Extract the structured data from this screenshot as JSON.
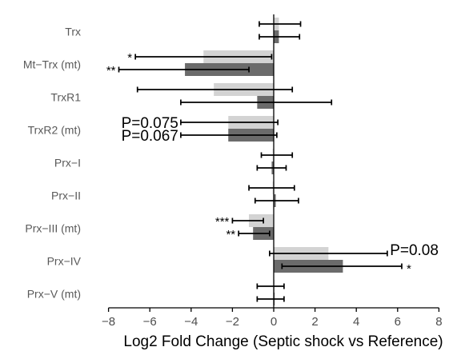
{
  "chart_data": {
    "type": "bar",
    "orientation": "horizontal",
    "title": "",
    "xlabel": "Log2 Fold Change (Septic shock vs Reference)",
    "ylabel": "",
    "xlim": [
      -9,
      9
    ],
    "xticks": [
      -8,
      -6,
      -4,
      -2,
      0,
      2,
      4,
      6,
      8
    ],
    "xtick_labels": [
      "−8",
      "−6",
      "−4",
      "−2",
      "0",
      "2",
      "4",
      "6",
      "8"
    ],
    "grid": false,
    "legend": "none",
    "categories": [
      "Trx",
      "Mt−Trx (mt)",
      "TrxR1",
      "TrxR2 (mt)",
      "Prx−I",
      "Prx−II",
      "Prx−III (mt)",
      "Prx−IV",
      "Prx−V (mt)"
    ],
    "series": [
      {
        "color": "#d3d3d3",
        "values": [
          0.25,
          -3.4,
          -2.9,
          -2.2,
          -0.05,
          -0.05,
          -1.2,
          2.65,
          0.0
        ],
        "error_low": [
          -0.7,
          -6.7,
          -6.6,
          -4.5,
          -0.6,
          -1.2,
          -2.0,
          -0.2,
          -0.8
        ],
        "error_high": [
          1.3,
          -0.1,
          0.9,
          0.2,
          0.9,
          1.0,
          -0.5,
          5.5,
          0.5
        ],
        "annotations": [
          "",
          "*",
          "",
          "P=0.075",
          "",
          "",
          "***",
          "",
          ""
        ]
      },
      {
        "color": "#6b6b6b",
        "values": [
          0.25,
          -4.3,
          -0.8,
          -2.2,
          -0.1,
          0.1,
          -1.0,
          3.35,
          0.0
        ],
        "error_low": [
          -0.7,
          -7.5,
          -4.5,
          -4.5,
          -0.8,
          -0.9,
          -1.7,
          0.4,
          -0.8
        ],
        "error_high": [
          1.25,
          -1.2,
          2.8,
          0.15,
          0.6,
          1.2,
          -0.2,
          6.2,
          0.5
        ],
        "annotations": [
          "",
          "**",
          "",
          "P=0.067",
          "",
          "",
          "**",
          "P=0.08",
          ""
        ]
      }
    ],
    "extra_annotations": [
      {
        "series": 1,
        "category": 7,
        "text": "*"
      }
    ]
  }
}
